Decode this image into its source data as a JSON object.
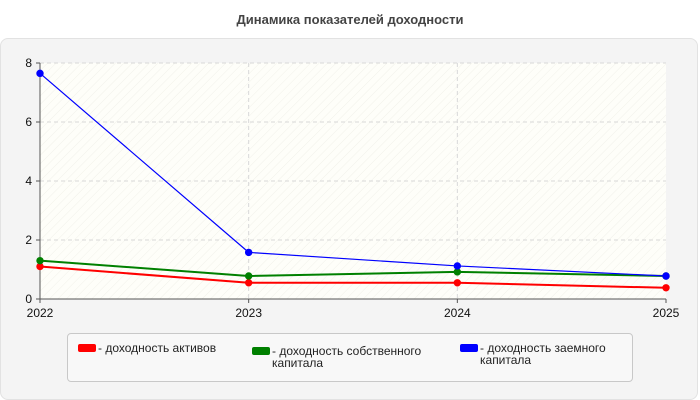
{
  "chart_data": {
    "type": "line",
    "title": "Динамика показателей доходности",
    "xlabel": "",
    "ylabel": "",
    "categories": [
      "2022",
      "2023",
      "2024",
      "2025"
    ],
    "ylim": [
      0,
      8
    ],
    "yticks": [
      "0",
      "2",
      "4",
      "6",
      "8"
    ],
    "grid": true,
    "legend_position": "bottom",
    "series": [
      {
        "name": "- доходность активов",
        "color": "#ff0000",
        "values": [
          1.1,
          0.55,
          0.55,
          0.38
        ]
      },
      {
        "name": "- доходность собственного капитала",
        "color": "#008000",
        "values": [
          1.3,
          0.78,
          0.92,
          0.78
        ]
      },
      {
        "name": "- доходность заемного капитала",
        "color": "#0000ff",
        "values": [
          7.65,
          1.58,
          1.12,
          0.78
        ]
      }
    ]
  }
}
